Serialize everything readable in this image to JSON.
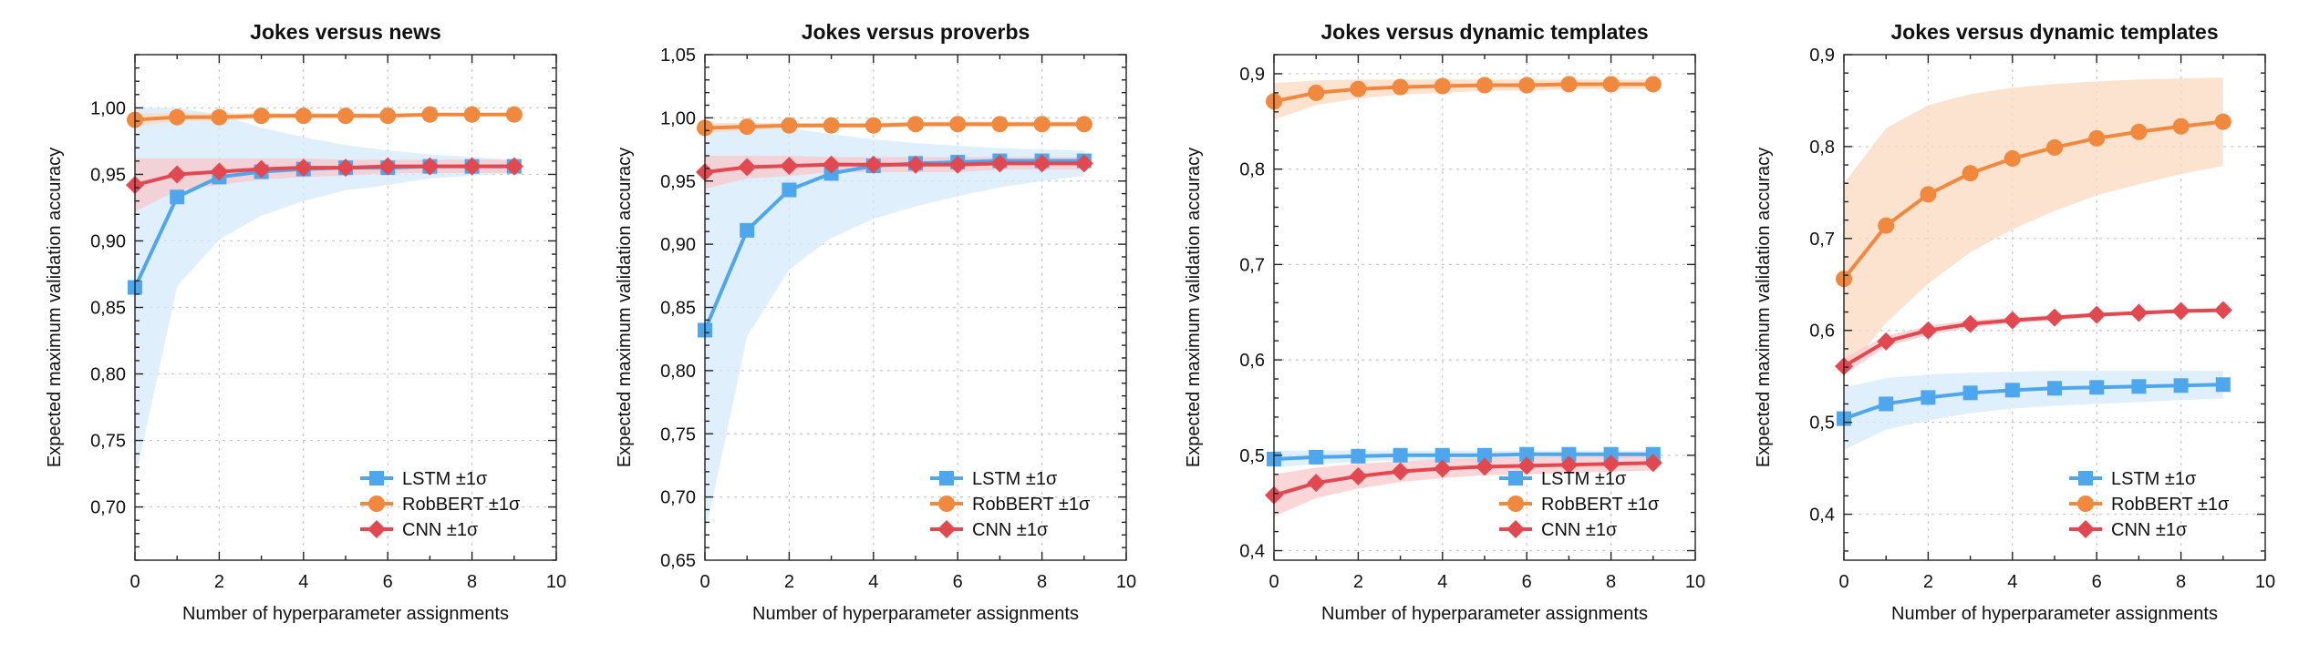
{
  "colors": {
    "LSTM": "#4ea6ec",
    "RobBERT": "#f0883e",
    "CNN": "#e24850",
    "LSTM_band": "#d5e9fb",
    "RobBERT_band": "#fbd9bf",
    "CNN_band": "#f8c8cb"
  },
  "chart_data": [
    {
      "type": "line",
      "title": "Jokes versus news",
      "xlabel": "Number of hyperparameter assignments",
      "ylabel": "Expected maximum validation accuracy",
      "xlim": [
        0,
        10
      ],
      "ylim": [
        0.66,
        1.04
      ],
      "xticks": [
        0,
        2,
        4,
        6,
        8,
        10
      ],
      "xtick_labels": [
        "0",
        "2",
        "4",
        "6",
        "8",
        "10"
      ],
      "yticks": [
        0.7,
        0.75,
        0.8,
        0.85,
        0.9,
        0.95,
        1.0
      ],
      "ytick_labels": [
        "0,70",
        "0,75",
        "0,80",
        "0,85",
        "0,90",
        "0,95",
        "1,00"
      ],
      "grid": true,
      "legend_position": "bottom-right",
      "x": [
        0,
        1,
        2,
        3,
        4,
        5,
        6,
        7,
        8,
        9
      ],
      "series": [
        {
          "name": "LSTM ±1σ",
          "key": "LSTM",
          "marker": "square",
          "values": [
            0.865,
            0.933,
            0.948,
            0.952,
            0.954,
            0.955,
            0.955,
            0.956,
            0.956,
            0.956
          ],
          "upper": [
            1.0,
            1.0,
            0.995,
            0.985,
            0.978,
            0.972,
            0.968,
            0.965,
            0.963,
            0.961
          ],
          "lower": [
            0.72,
            0.866,
            0.901,
            0.919,
            0.93,
            0.938,
            0.942,
            0.947,
            0.949,
            0.951
          ]
        },
        {
          "name": "RobBERT ±1σ",
          "key": "RobBERT",
          "marker": "circle",
          "values": [
            0.991,
            0.993,
            0.993,
            0.994,
            0.994,
            0.994,
            0.994,
            0.995,
            0.995,
            0.995
          ],
          "upper": [
            0.996,
            0.996,
            0.996,
            0.996,
            0.996,
            0.996,
            0.996,
            0.996,
            0.996,
            0.996
          ],
          "lower": [
            0.986,
            0.99,
            0.99,
            0.992,
            0.992,
            0.992,
            0.992,
            0.994,
            0.994,
            0.994
          ]
        },
        {
          "name": "CNN ±1σ",
          "key": "CNN",
          "marker": "diamond",
          "values": [
            0.942,
            0.95,
            0.952,
            0.954,
            0.955,
            0.955,
            0.956,
            0.956,
            0.956,
            0.956
          ],
          "upper": [
            0.962,
            0.962,
            0.962,
            0.962,
            0.962,
            0.961,
            0.961,
            0.961,
            0.961,
            0.961
          ],
          "lower": [
            0.922,
            0.938,
            0.942,
            0.946,
            0.948,
            0.949,
            0.951,
            0.951,
            0.951,
            0.951
          ]
        }
      ]
    },
    {
      "type": "line",
      "title": "Jokes versus proverbs",
      "xlabel": "Number of hyperparameter assignments",
      "ylabel": "Expected maximum validation accuracy",
      "xlim": [
        0,
        10
      ],
      "ylim": [
        0.65,
        1.05
      ],
      "xticks": [
        0,
        2,
        4,
        6,
        8,
        10
      ],
      "xtick_labels": [
        "0",
        "2",
        "4",
        "6",
        "8",
        "10"
      ],
      "yticks": [
        0.65,
        0.7,
        0.75,
        0.8,
        0.85,
        0.9,
        0.95,
        1.0,
        1.05
      ],
      "ytick_labels": [
        "0,65",
        "0,70",
        "0,75",
        "0,80",
        "0,85",
        "0,90",
        "0,95",
        "1,00",
        "1,05"
      ],
      "grid": true,
      "legend_position": "bottom-right",
      "x": [
        0,
        1,
        2,
        3,
        4,
        5,
        6,
        7,
        8,
        9
      ],
      "series": [
        {
          "name": "LSTM ±1σ",
          "key": "LSTM",
          "marker": "square",
          "values": [
            0.832,
            0.911,
            0.943,
            0.956,
            0.962,
            0.964,
            0.965,
            0.966,
            0.966,
            0.966
          ],
          "upper": [
            0.995,
            0.995,
            0.992,
            0.987,
            0.983,
            0.98,
            0.978,
            0.976,
            0.975,
            0.974
          ],
          "lower": [
            0.67,
            0.827,
            0.88,
            0.905,
            0.92,
            0.93,
            0.938,
            0.945,
            0.95,
            0.954
          ]
        },
        {
          "name": "RobBERT ±1σ",
          "key": "RobBERT",
          "marker": "circle",
          "values": [
            0.992,
            0.993,
            0.994,
            0.994,
            0.994,
            0.995,
            0.995,
            0.995,
            0.995,
            0.995
          ],
          "upper": [
            0.996,
            0.996,
            0.996,
            0.996,
            0.996,
            0.997,
            0.997,
            0.997,
            0.997,
            0.997
          ],
          "lower": [
            0.988,
            0.99,
            0.992,
            0.992,
            0.992,
            0.993,
            0.993,
            0.993,
            0.993,
            0.993
          ]
        },
        {
          "name": "CNN ±1σ",
          "key": "CNN",
          "marker": "diamond",
          "values": [
            0.957,
            0.961,
            0.962,
            0.963,
            0.963,
            0.963,
            0.963,
            0.964,
            0.964,
            0.964
          ],
          "upper": [
            0.97,
            0.97,
            0.97,
            0.969,
            0.969,
            0.969,
            0.969,
            0.969,
            0.969,
            0.969
          ],
          "lower": [
            0.944,
            0.952,
            0.954,
            0.957,
            0.957,
            0.957,
            0.957,
            0.959,
            0.959,
            0.959
          ]
        }
      ]
    },
    {
      "type": "line",
      "title": "Jokes versus dynamic templates",
      "xlabel": "Number of hyperparameter assignments",
      "ylabel": "Expected maximum validation accuracy",
      "xlim": [
        0,
        10
      ],
      "ylim": [
        0.39,
        0.92
      ],
      "xticks": [
        0,
        2,
        4,
        6,
        8,
        10
      ],
      "xtick_labels": [
        "0",
        "2",
        "4",
        "6",
        "8",
        "10"
      ],
      "yticks": [
        0.4,
        0.5,
        0.6,
        0.7,
        0.8,
        0.9
      ],
      "ytick_labels": [
        "0,4",
        "0,5",
        "0,6",
        "0,7",
        "0,8",
        "0,9"
      ],
      "grid": true,
      "legend_position": "bottom-right",
      "x": [
        0,
        1,
        2,
        3,
        4,
        5,
        6,
        7,
        8,
        9
      ],
      "series": [
        {
          "name": "LSTM ±1σ",
          "key": "LSTM",
          "marker": "square",
          "values": [
            0.496,
            0.498,
            0.499,
            0.5,
            0.5,
            0.5,
            0.501,
            0.501,
            0.501,
            0.501
          ],
          "upper": [
            0.505,
            0.505,
            0.505,
            0.505,
            0.505,
            0.505,
            0.505,
            0.505,
            0.505,
            0.505
          ],
          "lower": [
            0.487,
            0.491,
            0.493,
            0.495,
            0.495,
            0.495,
            0.497,
            0.497,
            0.497,
            0.497
          ]
        },
        {
          "name": "RobBERT ±1σ",
          "key": "RobBERT",
          "marker": "circle",
          "values": [
            0.871,
            0.88,
            0.884,
            0.886,
            0.887,
            0.888,
            0.888,
            0.889,
            0.889,
            0.889
          ],
          "upper": [
            0.89,
            0.893,
            0.894,
            0.894,
            0.894,
            0.894,
            0.894,
            0.894,
            0.894,
            0.894
          ],
          "lower": [
            0.852,
            0.867,
            0.874,
            0.878,
            0.88,
            0.882,
            0.882,
            0.884,
            0.884,
            0.884
          ]
        },
        {
          "name": "CNN ±1σ",
          "key": "CNN",
          "marker": "diamond",
          "values": [
            0.458,
            0.471,
            0.478,
            0.483,
            0.486,
            0.488,
            0.489,
            0.49,
            0.491,
            0.492
          ],
          "upper": [
            0.48,
            0.487,
            0.491,
            0.494,
            0.496,
            0.497,
            0.498,
            0.499,
            0.499,
            0.5
          ],
          "lower": [
            0.436,
            0.455,
            0.465,
            0.472,
            0.476,
            0.479,
            0.48,
            0.481,
            0.483,
            0.484
          ]
        }
      ]
    },
    {
      "type": "line",
      "title": "Jokes versus dynamic templates",
      "xlabel": "Number of hyperparameter assignments",
      "ylabel": "Expected maximum validation accuracy",
      "xlim": [
        0,
        10
      ],
      "ylim": [
        0.35,
        0.9
      ],
      "xticks": [
        0,
        2,
        4,
        6,
        8,
        10
      ],
      "xtick_labels": [
        "0",
        "2",
        "4",
        "6",
        "8",
        "10"
      ],
      "yticks": [
        0.4,
        0.5,
        0.6,
        0.7,
        0.8,
        0.9
      ],
      "ytick_labels": [
        "0,4",
        "0,5",
        "0,6",
        "0,7",
        "0,8",
        "0,9"
      ],
      "grid": true,
      "legend_position": "bottom-right",
      "x": [
        0,
        1,
        2,
        3,
        4,
        5,
        6,
        7,
        8,
        9
      ],
      "series": [
        {
          "name": "LSTM ±1σ",
          "key": "LSTM",
          "marker": "square",
          "values": [
            0.504,
            0.52,
            0.527,
            0.532,
            0.535,
            0.537,
            0.538,
            0.539,
            0.54,
            0.541
          ],
          "upper": [
            0.538,
            0.548,
            0.552,
            0.554,
            0.555,
            0.556,
            0.556,
            0.556,
            0.556,
            0.556
          ],
          "lower": [
            0.47,
            0.492,
            0.502,
            0.51,
            0.515,
            0.518,
            0.52,
            0.522,
            0.524,
            0.526
          ]
        },
        {
          "name": "RobBERT ±1σ",
          "key": "RobBERT",
          "marker": "circle",
          "values": [
            0.656,
            0.714,
            0.748,
            0.771,
            0.787,
            0.799,
            0.809,
            0.816,
            0.822,
            0.827
          ],
          "upper": [
            0.76,
            0.82,
            0.845,
            0.857,
            0.864,
            0.868,
            0.871,
            0.873,
            0.874,
            0.875
          ],
          "lower": [
            0.552,
            0.608,
            0.651,
            0.685,
            0.71,
            0.73,
            0.747,
            0.759,
            0.77,
            0.779
          ]
        },
        {
          "name": "CNN ±1σ",
          "key": "CNN",
          "marker": "diamond",
          "values": [
            0.561,
            0.588,
            0.6,
            0.607,
            0.611,
            0.614,
            0.617,
            0.619,
            0.621,
            0.622
          ],
          "upper": [
            0.57,
            0.594,
            0.605,
            0.611,
            0.614,
            0.617,
            0.619,
            0.621,
            0.623,
            0.624
          ],
          "lower": [
            0.552,
            0.582,
            0.595,
            0.603,
            0.608,
            0.611,
            0.615,
            0.617,
            0.619,
            0.62
          ]
        }
      ]
    }
  ]
}
